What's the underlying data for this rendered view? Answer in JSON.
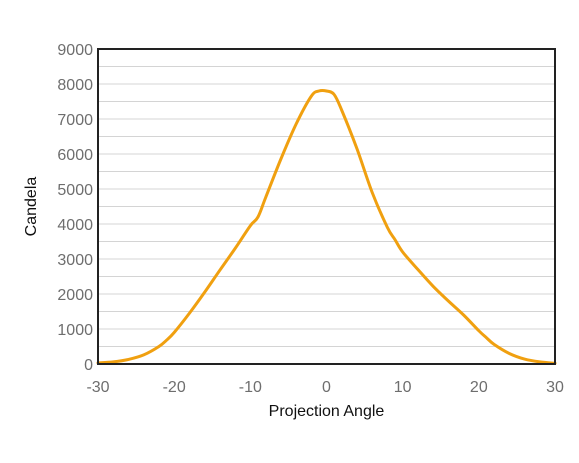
{
  "chart_data": {
    "type": "line",
    "title": "",
    "xlabel": "Projection Angle",
    "ylabel": "Candela",
    "xlim": [
      -30,
      30
    ],
    "ylim": [
      0,
      9000
    ],
    "xticks": [
      -30,
      -20,
      -10,
      0,
      10,
      20,
      30
    ],
    "xtick_labels": [
      "-30",
      "-20",
      "-10",
      "0",
      "10",
      "20",
      "30"
    ],
    "yticks": [
      0,
      1000,
      2000,
      3000,
      4000,
      5000,
      6000,
      7000,
      8000,
      9000
    ],
    "ytick_labels": [
      "0",
      "1000",
      "2000",
      "3000",
      "4000",
      "5000",
      "6000",
      "7000",
      "8000",
      "9000"
    ],
    "minor_gridlines_per_major": 2,
    "grid": true,
    "legend": "none",
    "line_color": "#f0a010",
    "series": [
      {
        "x": [
          -30,
          -28,
          -26,
          -24,
          -22,
          -21,
          -20,
          -18,
          -16,
          -14,
          -12,
          -10,
          -9,
          -8,
          -6,
          -4,
          -2,
          -1,
          0,
          1,
          2,
          4,
          6,
          8,
          9,
          10,
          12,
          14,
          16,
          18,
          20,
          21,
          22,
          24,
          26,
          28,
          30
        ],
        "y": [
          30,
          60,
          130,
          260,
          500,
          680,
          900,
          1450,
          2050,
          2680,
          3300,
          3950,
          4200,
          4750,
          5850,
          6850,
          7650,
          7800,
          7800,
          7700,
          7250,
          6150,
          4900,
          3900,
          3550,
          3200,
          2700,
          2220,
          1800,
          1400,
          950,
          750,
          560,
          300,
          140,
          60,
          20
        ]
      }
    ]
  }
}
